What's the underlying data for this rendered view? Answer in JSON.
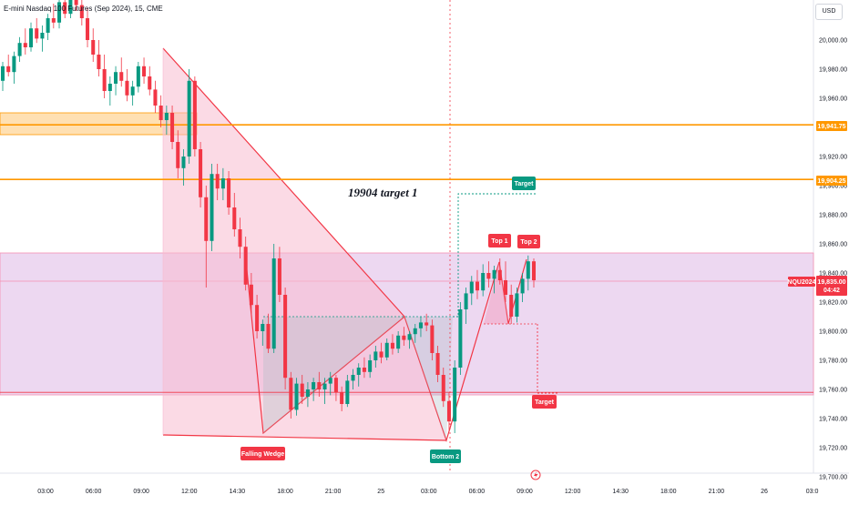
{
  "header": {
    "title": "E-mini Nasdaq 100 Futures (Sep 2024), 15, CME",
    "currency_button": "USD"
  },
  "colors": {
    "up": "#089981",
    "down": "#f23645",
    "orange": "#ff9800",
    "pink_zone": "#e1bee7",
    "red_line": "#f23645",
    "green_label": "#089981"
  },
  "chart_data": {
    "type": "candlestick",
    "title": "E-mini Nasdaq 100 Futures (Sep 2024), 15, CME",
    "symbol": "NQU2024",
    "last_price": "19,835.00",
    "countdown": "04:42",
    "y_axis": {
      "range": [
        19700,
        20040
      ],
      "ticks": [
        "20,000.00",
        "19,980.00",
        "19,960.00",
        "19,940.00",
        "19,920.00",
        "19,900.00",
        "19,880.00",
        "19,860.00",
        "19,840.00",
        "19,820.00",
        "19,800.00",
        "19,780.00",
        "19,760.00",
        "19,740.00",
        "19,720.00",
        "19,700.00"
      ]
    },
    "x_axis": {
      "ticks": [
        "03:00",
        "06:00",
        "09:00",
        "12:00",
        "14:30",
        "18:00",
        "21:00",
        "25",
        "03:00",
        "06:00",
        "09:00",
        "12:00",
        "14:30",
        "18:00",
        "21:00",
        "26",
        "03:0"
      ]
    },
    "horizontal_levels": [
      {
        "price": 20035,
        "label": ""
      },
      {
        "price": 19941.75,
        "label": "19,941.75"
      },
      {
        "price": 19904.25,
        "label": "19,904.25"
      }
    ],
    "zones": [
      {
        "name": "supply",
        "from": 19938,
        "to": 19953
      },
      {
        "name": "range",
        "from": 19758,
        "to": 19855
      }
    ],
    "annotations": {
      "note": "19904 target 1",
      "falling_wedge": "Falling Wedge",
      "bottom_2": "Bottom 2",
      "top_1": "Top 1",
      "top_2": "Top 2",
      "target_upper": "Target",
      "target_lower": "Target"
    },
    "candles": [
      [
        19972,
        19985,
        19965,
        19982
      ],
      [
        19982,
        19990,
        19975,
        19978
      ],
      [
        19978,
        19992,
        19970,
        19989
      ],
      [
        19989,
        20002,
        19985,
        19998
      ],
      [
        19998,
        20008,
        19990,
        19995
      ],
      [
        19995,
        20012,
        19992,
        20008
      ],
      [
        20008,
        20015,
        19998,
        20001
      ],
      [
        20001,
        20010,
        19992,
        20005
      ],
      [
        20005,
        20018,
        20000,
        20015
      ],
      [
        20015,
        20025,
        20008,
        20012
      ],
      [
        20012,
        20030,
        20008,
        20026
      ],
      [
        20026,
        20034,
        20015,
        20018
      ],
      [
        20018,
        20040,
        20015,
        20036
      ],
      [
        20036,
        20040,
        20020,
        20024
      ],
      [
        20024,
        20030,
        20010,
        20015
      ],
      [
        20015,
        20022,
        19995,
        20000
      ],
      [
        20000,
        20008,
        19985,
        19990
      ],
      [
        19990,
        20000,
        19975,
        19980
      ],
      [
        19980,
        19990,
        19960,
        19965
      ],
      [
        19965,
        19975,
        19955,
        19970
      ],
      [
        19970,
        19982,
        19962,
        19978
      ],
      [
        19978,
        19988,
        19968,
        19972
      ],
      [
        19972,
        19980,
        19958,
        19962
      ],
      [
        19962,
        19972,
        19955,
        19968
      ],
      [
        19968,
        19985,
        19964,
        19982
      ],
      [
        19982,
        19988,
        19970,
        19975
      ],
      [
        19975,
        19982,
        19962,
        19966
      ],
      [
        19966,
        19972,
        19950,
        19955
      ],
      [
        19955,
        19962,
        19940,
        19945
      ],
      [
        19945,
        19955,
        19935,
        19950
      ],
      [
        19950,
        19955,
        19925,
        19930
      ],
      [
        19930,
        19938,
        19905,
        19912
      ],
      [
        19912,
        19925,
        19900,
        19920
      ],
      [
        19920,
        19980,
        19915,
        19972
      ],
      [
        19972,
        19975,
        19920,
        19925
      ],
      [
        19925,
        19930,
        19885,
        19892
      ],
      [
        19892,
        19900,
        19830,
        19862
      ],
      [
        19862,
        19915,
        19855,
        19908
      ],
      [
        19908,
        19915,
        19890,
        19898
      ],
      [
        19898,
        19912,
        19890,
        19905
      ],
      [
        19905,
        19910,
        19880,
        19885
      ],
      [
        19885,
        19895,
        19865,
        19870
      ],
      [
        19870,
        19878,
        19850,
        19858
      ],
      [
        19858,
        19865,
        19828,
        19832
      ],
      [
        19832,
        19840,
        19812,
        19818
      ],
      [
        19818,
        19825,
        19795,
        19800
      ],
      [
        19800,
        19808,
        19790,
        19805
      ],
      [
        19805,
        19812,
        19785,
        19788
      ],
      [
        19788,
        19860,
        19785,
        19850
      ],
      [
        19850,
        19858,
        19820,
        19825
      ],
      [
        19825,
        19830,
        19760,
        19768
      ],
      [
        19768,
        19772,
        19740,
        19746
      ],
      [
        19746,
        19768,
        19742,
        19764
      ],
      [
        19764,
        19770,
        19750,
        19755
      ],
      [
        19755,
        19765,
        19748,
        19760
      ],
      [
        19760,
        19768,
        19752,
        19765
      ],
      [
        19765,
        19772,
        19755,
        19760
      ],
      [
        19760,
        19768,
        19750,
        19764
      ],
      [
        19764,
        19772,
        19756,
        19768
      ],
      [
        19768,
        19770,
        19752,
        19758
      ],
      [
        19758,
        19762,
        19745,
        19750
      ],
      [
        19750,
        19770,
        19748,
        19766
      ],
      [
        19766,
        19774,
        19760,
        19770
      ],
      [
        19770,
        19778,
        19762,
        19775
      ],
      [
        19775,
        19782,
        19768,
        19772
      ],
      [
        19772,
        19784,
        19768,
        19780
      ],
      [
        19780,
        19790,
        19775,
        19786
      ],
      [
        19786,
        19792,
        19778,
        19782
      ],
      [
        19782,
        19795,
        19780,
        19792
      ],
      [
        19792,
        19798,
        19784,
        19788
      ],
      [
        19788,
        19800,
        19785,
        19797
      ],
      [
        19797,
        19803,
        19790,
        19794
      ],
      [
        19794,
        19800,
        19788,
        19798
      ],
      [
        19798,
        19805,
        19792,
        19802
      ],
      [
        19802,
        19810,
        19796,
        19806
      ],
      [
        19806,
        19812,
        19800,
        19804
      ],
      [
        19804,
        19808,
        19780,
        19785
      ],
      [
        19785,
        19790,
        19765,
        19770
      ],
      [
        19770,
        19775,
        19748,
        19752
      ],
      [
        19752,
        19758,
        19732,
        19738
      ],
      [
        19738,
        19780,
        19730,
        19775
      ],
      [
        19775,
        19820,
        19770,
        19815
      ],
      [
        19815,
        19830,
        19805,
        19826
      ],
      [
        19826,
        19838,
        19818,
        19834
      ],
      [
        19834,
        19842,
        19822,
        19828
      ],
      [
        19828,
        19846,
        19824,
        19840
      ],
      [
        19840,
        19848,
        19830,
        19836
      ],
      [
        19836,
        19845,
        19826,
        19842
      ],
      [
        19842,
        19850,
        19832,
        19835
      ],
      [
        19835,
        19848,
        19820,
        19825
      ],
      [
        19825,
        19832,
        19805,
        19810
      ],
      [
        19810,
        19830,
        19806,
        19826
      ],
      [
        19826,
        19840,
        19820,
        19836
      ],
      [
        19836,
        19852,
        19828,
        19848
      ],
      [
        19848,
        19850,
        19830,
        19835
      ]
    ]
  }
}
